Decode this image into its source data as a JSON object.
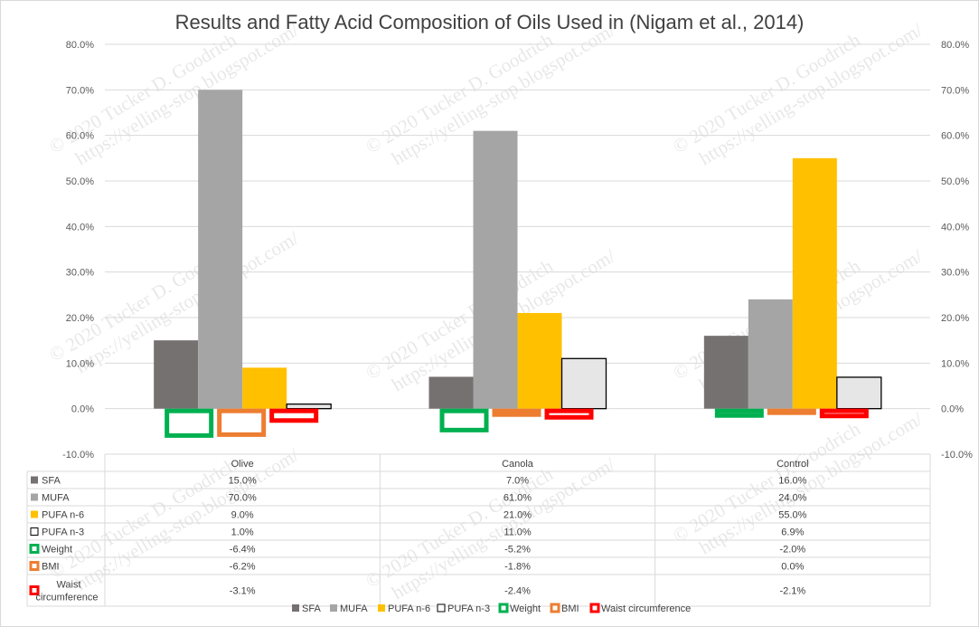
{
  "chart_data": {
    "type": "bar",
    "title": "Results and Fatty Acid Composition of Oils Used in (Nigam et al., 2014)",
    "categories": [
      "Olive",
      "Canola",
      "Control"
    ],
    "series": [
      {
        "name": "SFA",
        "values": [
          0.15,
          0.07,
          0.16
        ],
        "labels": [
          "15.0%",
          "7.0%",
          "16.0%"
        ],
        "color": "#767171",
        "style": "solid"
      },
      {
        "name": "MUFA",
        "values": [
          0.7,
          0.61,
          0.24
        ],
        "labels": [
          "70.0%",
          "61.0%",
          "24.0%"
        ],
        "color": "#a5a5a5",
        "style": "solid"
      },
      {
        "name": "PUFA n-6",
        "values": [
          0.09,
          0.21,
          0.55
        ],
        "labels": [
          "9.0%",
          "21.0%",
          "55.0%"
        ],
        "color": "#ffc000",
        "style": "solid"
      },
      {
        "name": "PUFA n-3",
        "values": [
          0.01,
          0.11,
          0.069
        ],
        "labels": [
          "1.0%",
          "11.0%",
          "6.9%"
        ],
        "color": "#e7e6e6",
        "stroke": "#000000",
        "style": "outline-fill"
      },
      {
        "name": "Weight",
        "values": [
          -0.064,
          -0.052,
          -0.02
        ],
        "labels": [
          "-6.4%",
          "-5.2%",
          "-2.0%"
        ],
        "color": "#00b050",
        "style": "hollow"
      },
      {
        "name": "BMI",
        "values": [
          -0.062,
          -0.018,
          0.0
        ],
        "labels": [
          "-6.2%",
          "-1.8%",
          "0.0%"
        ],
        "color": "#ed7d31",
        "style": "hollow"
      },
      {
        "name": "Waist circumference",
        "values": [
          -0.031,
          -0.024,
          -0.021
        ],
        "labels": [
          "-3.1%",
          "-2.4%",
          "-2.1%"
        ],
        "color": "#ff0000",
        "style": "hollow"
      }
    ],
    "ylim": [
      -0.1,
      0.8
    ],
    "yticks": [
      -0.1,
      0,
      0.1,
      0.2,
      0.3,
      0.4,
      0.5,
      0.6,
      0.7,
      0.8
    ],
    "ytick_labels": [
      "-10.0%",
      "0.0%",
      "10.0%",
      "20.0%",
      "30.0%",
      "40.0%",
      "50.0%",
      "60.0%",
      "70.0%",
      "80.0%"
    ],
    "secondary_axis": true,
    "grid": true,
    "data_table": true,
    "legend": "bottom",
    "watermark": "© 2020 Tucker D. Goodrich https://yelling-stop.blogspot.com/"
  }
}
